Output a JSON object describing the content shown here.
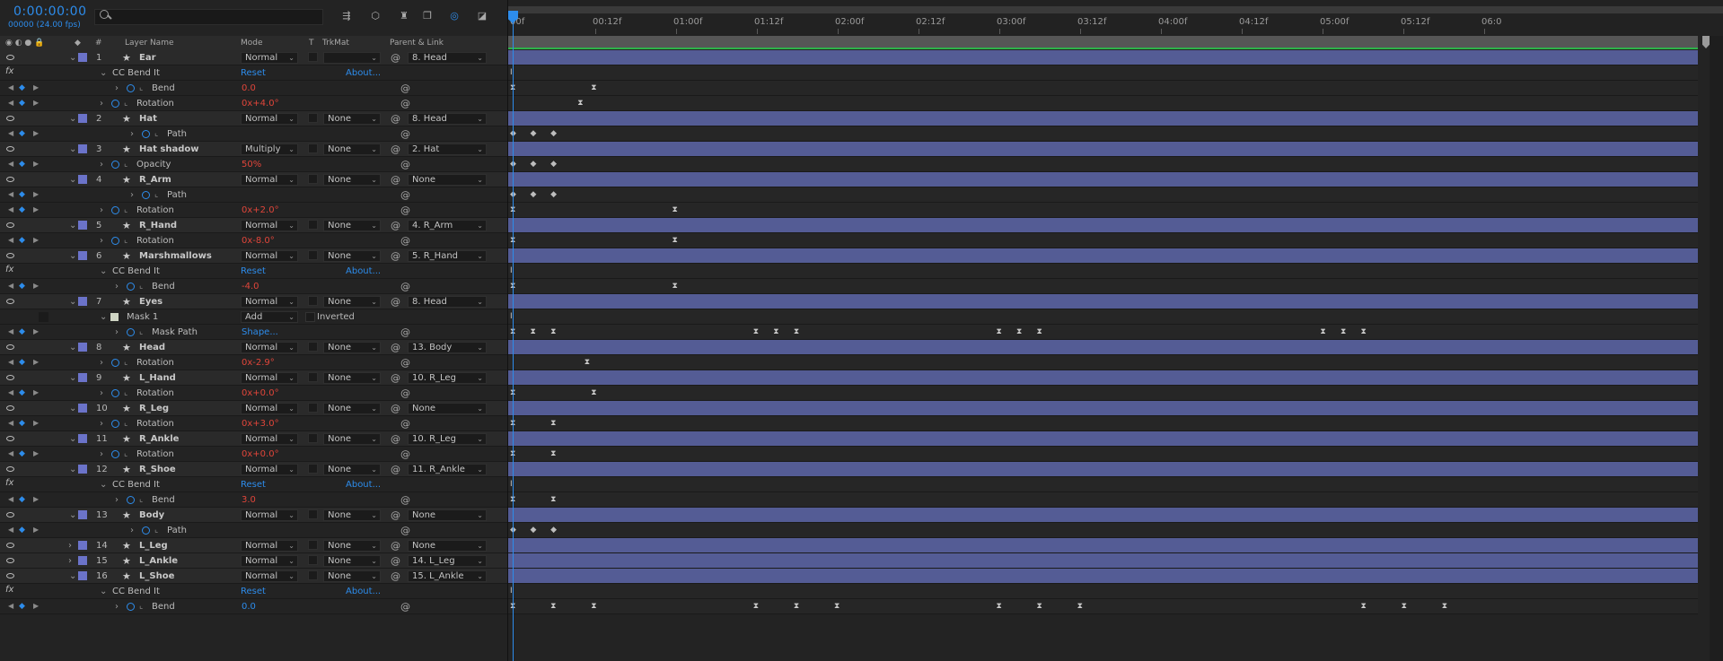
{
  "timecode": "0:00:00:00",
  "frame_info": "00000 (24.00 fps)",
  "header": {
    "hash": "#",
    "layer_name": "Layer Name",
    "mode": "Mode",
    "t": "T",
    "trkmat": "TrkMat",
    "parent": "Parent & Link"
  },
  "labels": {
    "reset": "Reset",
    "about": "About...",
    "inverted": "Inverted",
    "shape": "Shape..."
  },
  "ruler_ticks": [
    "00f",
    "00:12f",
    "01:00f",
    "01:12f",
    "02:00f",
    "02:12f",
    "03:00f",
    "03:12f",
    "04:00f",
    "04:12f",
    "05:00f",
    "05:12f",
    "06:0"
  ],
  "rows": [
    {
      "type": "layer",
      "num": "1",
      "name": "Ear",
      "mode": "Normal",
      "trkmat": "",
      "parent": "8. Head"
    },
    {
      "type": "effect",
      "name": "CC Bend It"
    },
    {
      "type": "prop",
      "name": "Bend",
      "value": "0.0",
      "vcolor": "red",
      "indent": 2
    },
    {
      "type": "prop",
      "name": "Rotation",
      "value": "0x+4.0°",
      "vcolor": "red",
      "indent": 1
    },
    {
      "type": "layer",
      "num": "2",
      "name": "Hat",
      "mode": "Normal",
      "trkmat": "None",
      "parent": "8. Head"
    },
    {
      "type": "prop",
      "name": "Path",
      "value": "",
      "indent": 3
    },
    {
      "type": "layer",
      "num": "3",
      "name": "Hat shadow",
      "mode": "Multiply",
      "trkmat": "None",
      "parent": "2. Hat"
    },
    {
      "type": "prop",
      "name": "Opacity",
      "value": "50%",
      "vcolor": "red",
      "indent": 1
    },
    {
      "type": "layer",
      "num": "4",
      "name": "R_Arm",
      "mode": "Normal",
      "trkmat": "None",
      "parent": "None"
    },
    {
      "type": "prop",
      "name": "Path",
      "value": "",
      "indent": 3
    },
    {
      "type": "prop",
      "name": "Rotation",
      "value": "0x+2.0°",
      "vcolor": "red",
      "indent": 1
    },
    {
      "type": "layer",
      "num": "5",
      "name": "R_Hand",
      "mode": "Normal",
      "trkmat": "None",
      "parent": "4. R_Arm"
    },
    {
      "type": "prop",
      "name": "Rotation",
      "value": "0x-8.0°",
      "vcolor": "red",
      "indent": 1
    },
    {
      "type": "layer",
      "num": "6",
      "name": "Marshmallows",
      "mode": "Normal",
      "trkmat": "None",
      "parent": "5. R_Hand"
    },
    {
      "type": "effect",
      "name": "CC Bend It"
    },
    {
      "type": "prop",
      "name": "Bend",
      "value": "-4.0",
      "vcolor": "red",
      "indent": 2
    },
    {
      "type": "layer",
      "num": "7",
      "name": "Eyes",
      "mode": "Normal",
      "trkmat": "None",
      "parent": "8. Head"
    },
    {
      "type": "mask",
      "name": "Mask 1",
      "mode": "Add"
    },
    {
      "type": "prop",
      "name": "Mask Path",
      "value": "",
      "indent": 2
    },
    {
      "type": "layer",
      "num": "8",
      "name": "Head",
      "mode": "Normal",
      "trkmat": "None",
      "parent": "13. Body"
    },
    {
      "type": "prop",
      "name": "Rotation",
      "value": "0x-2.9°",
      "vcolor": "red",
      "indent": 1
    },
    {
      "type": "layer",
      "num": "9",
      "name": "L_Hand",
      "mode": "Normal",
      "trkmat": "None",
      "parent": "10. R_Leg"
    },
    {
      "type": "prop",
      "name": "Rotation",
      "value": "0x+0.0°",
      "vcolor": "red",
      "indent": 1
    },
    {
      "type": "layer",
      "num": "10",
      "name": "R_Leg",
      "mode": "Normal",
      "trkmat": "None",
      "parent": "None"
    },
    {
      "type": "prop",
      "name": "Rotation",
      "value": "0x+3.0°",
      "vcolor": "red",
      "indent": 1
    },
    {
      "type": "layer",
      "num": "11",
      "name": "R_Ankle",
      "mode": "Normal",
      "trkmat": "None",
      "parent": "10. R_Leg"
    },
    {
      "type": "prop",
      "name": "Rotation",
      "value": "0x+0.0°",
      "vcolor": "red",
      "indent": 1
    },
    {
      "type": "layer",
      "num": "12",
      "name": "R_Shoe",
      "mode": "Normal",
      "trkmat": "None",
      "parent": "11. R_Ankle"
    },
    {
      "type": "effect",
      "name": "CC Bend It"
    },
    {
      "type": "prop",
      "name": "Bend",
      "value": "3.0",
      "vcolor": "red",
      "indent": 2
    },
    {
      "type": "layer",
      "num": "13",
      "name": "Body",
      "mode": "Normal",
      "trkmat": "None",
      "parent": "None"
    },
    {
      "type": "prop",
      "name": "Path",
      "value": "",
      "indent": 3
    },
    {
      "type": "layer",
      "num": "14",
      "name": "L_Leg",
      "mode": "Normal",
      "trkmat": "None",
      "parent": "None",
      "collapsed": true
    },
    {
      "type": "layer",
      "num": "15",
      "name": "L_Ankle",
      "mode": "Normal",
      "trkmat": "None",
      "parent": "14. L_Leg",
      "collapsed": true
    },
    {
      "type": "layer",
      "num": "16",
      "name": "L_Shoe",
      "mode": "Normal",
      "trkmat": "None",
      "parent": "15. L_Ankle"
    },
    {
      "type": "effect",
      "name": "CC Bend It"
    },
    {
      "type": "prop",
      "name": "Bend",
      "value": "0.0",
      "vcolor": "blue",
      "indent": 2
    }
  ],
  "keyframes": {
    "1": [
      {
        "f": 0,
        "s": "i"
      }
    ],
    "2": [
      {
        "f": 0,
        "s": "x"
      },
      {
        "f": 12,
        "s": "x"
      }
    ],
    "3": [
      {
        "f": 10,
        "s": "x"
      }
    ],
    "5": [
      {
        "f": 0,
        "s": "d"
      },
      {
        "f": 3,
        "s": "d"
      },
      {
        "f": 6,
        "s": "d"
      }
    ],
    "7": [
      {
        "f": 0,
        "s": "d"
      },
      {
        "f": 3,
        "s": "d"
      },
      {
        "f": 6,
        "s": "d"
      }
    ],
    "9": [
      {
        "f": 0,
        "s": "d"
      },
      {
        "f": 3,
        "s": "d"
      },
      {
        "f": 6,
        "s": "d"
      }
    ],
    "10": [
      {
        "f": 0,
        "s": "x"
      },
      {
        "f": 24,
        "s": "x"
      }
    ],
    "12": [
      {
        "f": 0,
        "s": "x"
      },
      {
        "f": 24,
        "s": "x"
      }
    ],
    "14": [
      {
        "f": 0,
        "s": "i"
      }
    ],
    "15": [
      {
        "f": 0,
        "s": "x"
      },
      {
        "f": 24,
        "s": "x"
      }
    ],
    "17": [
      {
        "f": 0,
        "s": "i"
      }
    ],
    "18": [
      {
        "f": 0,
        "s": "x"
      },
      {
        "f": 3,
        "s": "x"
      },
      {
        "f": 6,
        "s": "x"
      },
      {
        "f": 36,
        "s": "x"
      },
      {
        "f": 39,
        "s": "x"
      },
      {
        "f": 42,
        "s": "x"
      },
      {
        "f": 72,
        "s": "x"
      },
      {
        "f": 75,
        "s": "x"
      },
      {
        "f": 78,
        "s": "x"
      },
      {
        "f": 120,
        "s": "x"
      },
      {
        "f": 123,
        "s": "x"
      },
      {
        "f": 126,
        "s": "x"
      }
    ],
    "20": [
      {
        "f": 11,
        "s": "x"
      }
    ],
    "22": [
      {
        "f": 0,
        "s": "x"
      },
      {
        "f": 12,
        "s": "x"
      }
    ],
    "24": [
      {
        "f": 0,
        "s": "x"
      },
      {
        "f": 6,
        "s": "x"
      }
    ],
    "26": [
      {
        "f": 0,
        "s": "x"
      },
      {
        "f": 6,
        "s": "x"
      }
    ],
    "28": [
      {
        "f": 0,
        "s": "i"
      }
    ],
    "29": [
      {
        "f": 0,
        "s": "x"
      },
      {
        "f": 6,
        "s": "x"
      }
    ],
    "31": [
      {
        "f": 0,
        "s": "d"
      },
      {
        "f": 3,
        "s": "d"
      },
      {
        "f": 6,
        "s": "d"
      }
    ],
    "35": [
      {
        "f": 0,
        "s": "i"
      }
    ],
    "36": [
      {
        "f": 0,
        "s": "x"
      },
      {
        "f": 6,
        "s": "x"
      },
      {
        "f": 12,
        "s": "x"
      },
      {
        "f": 36,
        "s": "x"
      },
      {
        "f": 42,
        "s": "x"
      },
      {
        "f": 48,
        "s": "x"
      },
      {
        "f": 72,
        "s": "x"
      },
      {
        "f": 78,
        "s": "x"
      },
      {
        "f": 84,
        "s": "x"
      },
      {
        "f": 126,
        "s": "x"
      },
      {
        "f": 132,
        "s": "x"
      },
      {
        "f": 138,
        "s": "x"
      }
    ]
  },
  "colors": {
    "accent": "#2d8ceb",
    "layer_bar": "#545c95",
    "label": "#6b73c9",
    "value_red": "#e0453a"
  }
}
